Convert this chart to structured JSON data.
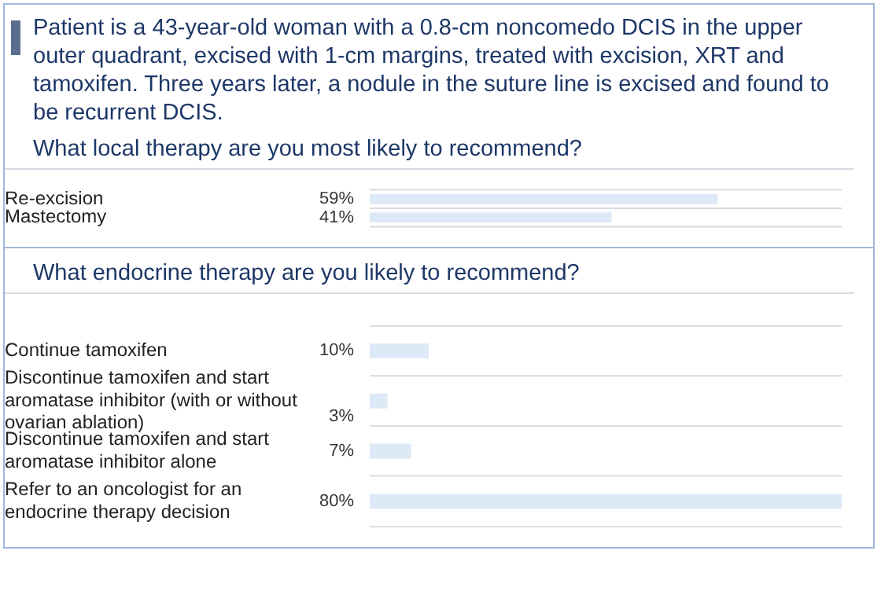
{
  "chart_data": [
    {
      "type": "bar",
      "orientation": "horizontal",
      "title": "Patient is a 43-year-old woman with a 0.8-cm noncomedo DCIS in the upper outer quadrant, excised with 1-cm margins, treated with excision, XRT and tamoxifen. Three years later, a nodule in the suture line is excised and found to be recurrent DCIS.",
      "subtitle": "What local therapy are you most likely to recommend?",
      "categories": [
        "Re-excision",
        "Mastectomy"
      ],
      "values": [
        59,
        41
      ],
      "value_labels": [
        "59%",
        "41%"
      ],
      "color": "#dde9f6",
      "grid": "y",
      "legend": false
    },
    {
      "type": "bar",
      "orientation": "horizontal",
      "subtitle": "What endocrine therapy are you likely to recommend?",
      "categories": [
        "Continue tamoxifen",
        "Discontinue tamoxifen and start aromatase inhibitor (with or without ovarian ablation)",
        "Discontinue tamoxifen and start aromatase inhibitor alone",
        "Refer to an oncologist for an endocrine therapy decision"
      ],
      "values": [
        10,
        3,
        7,
        80
      ],
      "value_labels": [
        "10%",
        "3%",
        "7%",
        "80%"
      ],
      "color": "#dde9f6",
      "grid": "y",
      "legend": false
    }
  ]
}
